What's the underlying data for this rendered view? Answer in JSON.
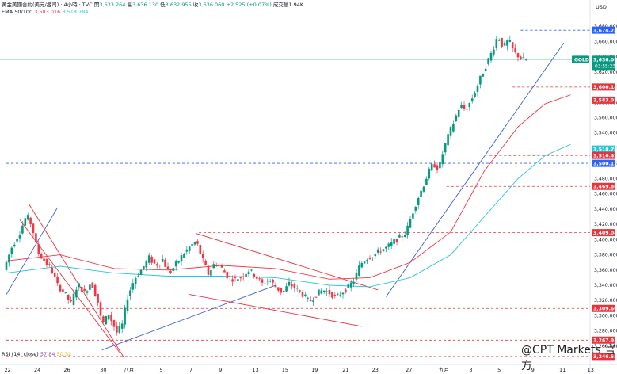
{
  "header": {
    "symbol_line": "黃金美國合約(美元/盎司) · 4小時 · TVC",
    "open_label": "開",
    "open": "3,633.264",
    "high_label": "高",
    "high": "3,636.130",
    "low_label": "低",
    "low": "3,632.955",
    "close_label": "收",
    "close": "3,636.060",
    "change": "+2.525 (+0.07%)",
    "volume": "成交量1.94K",
    "ema_label": "EMA 50/100",
    "ema50": "3,583.016",
    "ema100": "3,518.784"
  },
  "currency": "USD",
  "symbol_tag": "GOLD",
  "current_price": "3,636.060",
  "countdown": "03:55:23",
  "rsi": {
    "label": "RSI (14, close)",
    "value1": "57.84",
    "value2": "50.32"
  },
  "watermark": "@CPT Markets 官方",
  "colors": {
    "up": "#089981",
    "down": "#f23645",
    "ema50": "#f23645",
    "ema100": "#26c6da",
    "trend": "#3b5fd6",
    "level_red": "#e8323c",
    "level_blue": "#2962ff"
  },
  "chart_data": {
    "type": "candlestick",
    "title": "黃金美國合約(美元/盎司) · 4小時 · TVC",
    "ylim": [
      3236,
      3702
    ],
    "y_ticks": [
      3260,
      3280,
      3300,
      3320,
      3340,
      3360,
      3380,
      3400,
      3420,
      3440,
      3460,
      3480,
      3500,
      3520,
      3540,
      3560,
      3580,
      3600,
      3620,
      3640,
      3660,
      3680
    ],
    "x_tick_labels": [
      "22",
      "24",
      "26",
      "30",
      "八月",
      "5",
      "7",
      "9",
      "13",
      "15",
      "19",
      "21",
      "23",
      "27",
      "九月",
      "3",
      "5",
      "9",
      "11",
      "13"
    ],
    "x_tick_bars": [
      1,
      23,
      45,
      72,
      91,
      115,
      137,
      159,
      185,
      207,
      229,
      252,
      274,
      299,
      325,
      345,
      366,
      391,
      413,
      434
    ],
    "price_labels": [
      {
        "label": "3,674.780",
        "value": 3674.78,
        "color": "#2962ff"
      },
      {
        "label": "3,600.180",
        "value": 3600.18,
        "color": "#e8323c"
      },
      {
        "label": "3,583.016",
        "value": 3583.016,
        "color": "#e8323c"
      },
      {
        "label": "3,518.784",
        "value": 3518.784,
        "color": "#26c6da"
      },
      {
        "label": "3,510.425",
        "value": 3510.425,
        "color": "#e8323c"
      },
      {
        "label": "3,500.120",
        "value": 3500.12,
        "color": "#2962ff"
      },
      {
        "label": "3,469.805",
        "value": 3469.805,
        "color": "#e8323c"
      },
      {
        "label": "3,409.040",
        "value": 3409.04,
        "color": "#e8323c"
      },
      {
        "label": "3,309.600",
        "value": 3309.6,
        "color": "#e8323c"
      },
      {
        "label": "3,267.930",
        "value": 3267.93,
        "color": "#e8323c"
      },
      {
        "label": "3,246.550",
        "value": 3246.55,
        "color": "#e8323c"
      }
    ],
    "h_levels": [
      {
        "value": 3674.78,
        "color": "#2962ff",
        "from_bar": 382
      },
      {
        "value": 3600.18,
        "color": "#e8323c",
        "from_bar": 376
      },
      {
        "value": 3510.425,
        "color": "#e8323c",
        "from_bar": 359
      },
      {
        "value": 3500.12,
        "color": "#2962ff",
        "from_bar": 0
      },
      {
        "value": 3469.805,
        "color": "#e8323c",
        "from_bar": 327
      },
      {
        "value": 3409.04,
        "color": "#e8323c",
        "from_bar": 143
      },
      {
        "value": 3309.6,
        "color": "#e8323c",
        "from_bar": 0
      },
      {
        "value": 3267.93,
        "color": "#e8323c",
        "from_bar": 0
      },
      {
        "value": 3246.55,
        "color": "#e8323c",
        "from_bar": 0
      }
    ],
    "trendlines": [
      {
        "color": "#3b5fd6",
        "from": [
          0,
          3328
        ],
        "to": [
          38,
          3442
        ]
      },
      {
        "color": "#e8323c",
        "from": [
          17,
          3446
        ],
        "to": [
          87,
          3246
        ]
      },
      {
        "color": "#e8323c",
        "from": [
          10,
          3426
        ],
        "to": [
          84,
          3252
        ]
      },
      {
        "color": "#3b5fd6",
        "from": [
          71,
          3255
        ],
        "to": [
          200,
          3340
        ]
      },
      {
        "color": "#e8323c",
        "from": [
          141,
          3408
        ],
        "to": [
          276,
          3334
        ]
      },
      {
        "color": "#e8323c",
        "from": [
          136,
          3328
        ],
        "to": [
          264,
          3286
        ]
      },
      {
        "color": "#3b5fd6",
        "from": [
          282,
          3325
        ],
        "to": [
          414,
          3658
        ]
      }
    ],
    "series": [
      {
        "name": "EMA 50",
        "color": "#f23645",
        "points": [
          [
            0,
            3372
          ],
          [
            40,
            3380
          ],
          [
            80,
            3362
          ],
          [
            120,
            3360
          ],
          [
            160,
            3366
          ],
          [
            200,
            3362
          ],
          [
            240,
            3348
          ],
          [
            270,
            3350
          ],
          [
            300,
            3370
          ],
          [
            330,
            3410
          ],
          [
            355,
            3490
          ],
          [
            380,
            3548
          ],
          [
            400,
            3578
          ],
          [
            419,
            3590
          ]
        ]
      },
      {
        "name": "EMA 100",
        "color": "#26c6da",
        "points": [
          [
            0,
            3356
          ],
          [
            40,
            3365
          ],
          [
            80,
            3356
          ],
          [
            120,
            3352
          ],
          [
            160,
            3352
          ],
          [
            200,
            3350
          ],
          [
            240,
            3340
          ],
          [
            270,
            3338
          ],
          [
            300,
            3350
          ],
          [
            330,
            3380
          ],
          [
            355,
            3430
          ],
          [
            380,
            3480
          ],
          [
            400,
            3510
          ],
          [
            419,
            3525
          ]
        ]
      }
    ],
    "price_anchors": [
      [
        0,
        3360
      ],
      [
        6,
        3390
      ],
      [
        12,
        3410
      ],
      [
        17,
        3432
      ],
      [
        21,
        3418
      ],
      [
        25,
        3385
      ],
      [
        30,
        3372
      ],
      [
        35,
        3362
      ],
      [
        40,
        3340
      ],
      [
        45,
        3330
      ],
      [
        50,
        3316
      ],
      [
        55,
        3342
      ],
      [
        60,
        3330
      ],
      [
        65,
        3345
      ],
      [
        70,
        3318
      ],
      [
        73,
        3288
      ],
      [
        78,
        3302
      ],
      [
        84,
        3278
      ],
      [
        88,
        3288
      ],
      [
        92,
        3325
      ],
      [
        97,
        3348
      ],
      [
        103,
        3362
      ],
      [
        108,
        3376
      ],
      [
        113,
        3366
      ],
      [
        118,
        3374
      ],
      [
        123,
        3355
      ],
      [
        128,
        3368
      ],
      [
        133,
        3380
      ],
      [
        138,
        3390
      ],
      [
        143,
        3398
      ],
      [
        147,
        3376
      ],
      [
        152,
        3355
      ],
      [
        157,
        3370
      ],
      [
        162,
        3362
      ],
      [
        167,
        3350
      ],
      [
        172,
        3348
      ],
      [
        177,
        3352
      ],
      [
        182,
        3360
      ],
      [
        187,
        3352
      ],
      [
        192,
        3342
      ],
      [
        197,
        3348
      ],
      [
        202,
        3338
      ],
      [
        207,
        3330
      ],
      [
        212,
        3342
      ],
      [
        217,
        3336
      ],
      [
        222,
        3328
      ],
      [
        227,
        3318
      ],
      [
        232,
        3328
      ],
      [
        237,
        3334
      ],
      [
        242,
        3330
      ],
      [
        247,
        3324
      ],
      [
        252,
        3332
      ],
      [
        256,
        3338
      ],
      [
        260,
        3346
      ],
      [
        265,
        3368
      ],
      [
        270,
        3376
      ],
      [
        275,
        3380
      ],
      [
        280,
        3386
      ],
      [
        285,
        3390
      ],
      [
        290,
        3398
      ],
      [
        295,
        3404
      ],
      [
        299,
        3410
      ],
      [
        303,
        3432
      ],
      [
        307,
        3452
      ],
      [
        311,
        3468
      ],
      [
        315,
        3486
      ],
      [
        319,
        3500
      ],
      [
        323,
        3492
      ],
      [
        327,
        3520
      ],
      [
        331,
        3540
      ],
      [
        335,
        3558
      ],
      [
        339,
        3576
      ],
      [
        343,
        3570
      ],
      [
        347,
        3582
      ],
      [
        351,
        3598
      ],
      [
        355,
        3616
      ],
      [
        359,
        3632
      ],
      [
        363,
        3648
      ],
      [
        367,
        3668
      ],
      [
        371,
        3652
      ],
      [
        375,
        3662
      ],
      [
        379,
        3646
      ],
      [
        383,
        3640
      ],
      [
        386,
        3636
      ]
    ]
  }
}
